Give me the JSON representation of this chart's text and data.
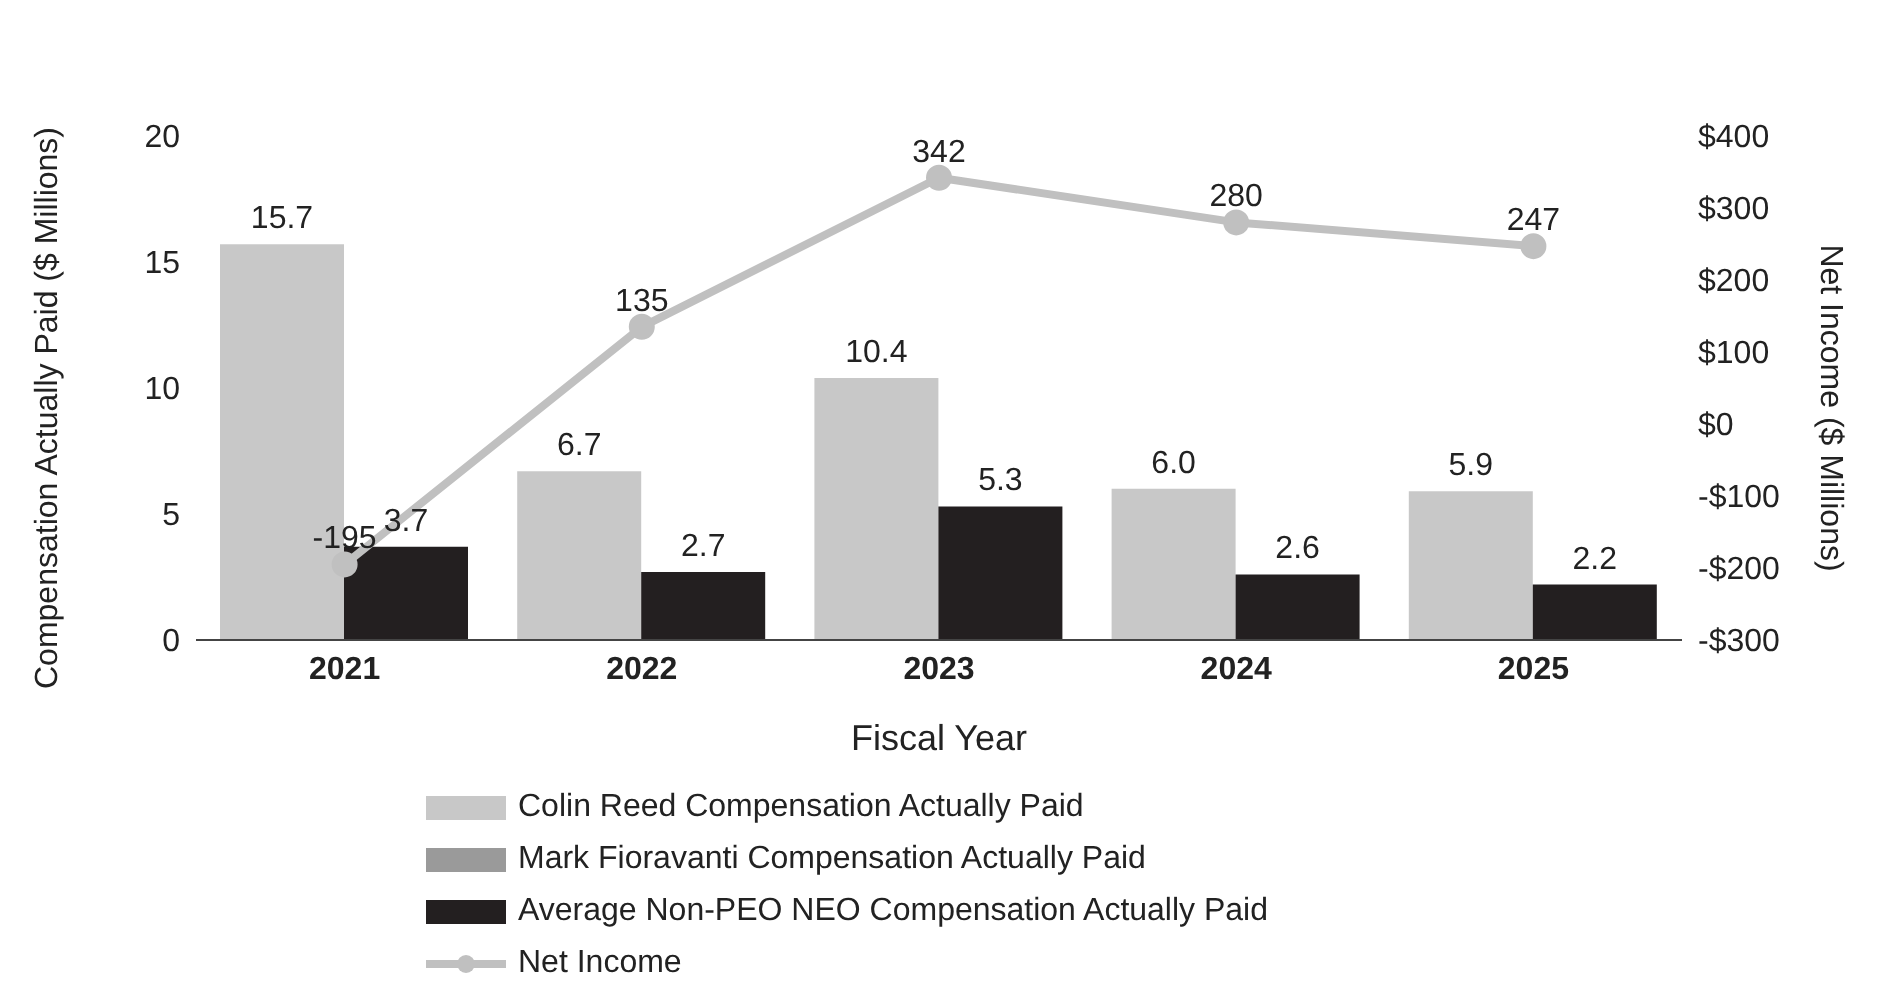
{
  "chart_data": {
    "type": "bar",
    "xlabel": "Fiscal Year",
    "ylabel": "Compensation Actually Paid ($ Millions)",
    "y2label": "Net Income ($ Millions)",
    "categories": [
      "2021",
      "2022",
      "2023",
      "2024",
      "2025"
    ],
    "series": [
      {
        "name": "Colin Reed Compensation Actually Paid",
        "color": "#c8c8c8",
        "values": [
          15.7,
          6.7,
          10.4,
          6.0,
          5.9
        ],
        "value_labels": [
          "15.7",
          "6.7",
          "10.4",
          "6.0",
          "5.9"
        ]
      },
      {
        "name": "Mark Fioravanti Compensation Actually Paid",
        "color": "#9a9a9a",
        "values": [
          null,
          null,
          null,
          null,
          null
        ]
      },
      {
        "name": "Average Non-PEO NEO Compensation Actually Paid",
        "color": "#231f20",
        "values": [
          3.7,
          2.7,
          5.3,
          2.6,
          2.2
        ],
        "value_labels": [
          "3.7",
          "2.7",
          "5.3",
          "2.6",
          "2.2"
        ]
      },
      {
        "name": "Net Income",
        "type": "line",
        "axis": "y2",
        "color": "#c0c0c0",
        "marker": "circle",
        "values": [
          -195,
          135,
          342,
          280,
          247
        ],
        "value_labels": [
          "-195",
          "135",
          "342",
          "280",
          "247"
        ]
      }
    ],
    "ylim": [
      0,
      20
    ],
    "yticks": [
      0,
      5,
      10,
      15,
      20
    ],
    "y2lim": [
      -300,
      400
    ],
    "y2ticks": [
      {
        "value": -300,
        "label": "-$300"
      },
      {
        "value": -200,
        "label": "-$200"
      },
      {
        "value": -100,
        "label": "-$100"
      },
      {
        "value": 0,
        "label": "$0"
      },
      {
        "value": 100,
        "label": "$100"
      },
      {
        "value": 200,
        "label": "$200"
      },
      {
        "value": 300,
        "label": "$300"
      },
      {
        "value": 400,
        "label": "$400"
      }
    ],
    "legend": "bottom"
  }
}
